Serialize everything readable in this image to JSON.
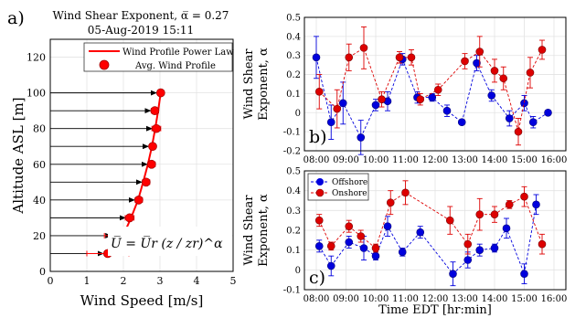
{
  "chart_data": [
    {
      "panel": "a)",
      "type": "scatter",
      "title": "Wind Shear Exponent, α̅ = 0.27",
      "subtitle": "05-Aug-2019 15:11",
      "xlabel": "Wind Speed [m/s]",
      "ylabel": "Altitude ASL [m]",
      "xlim": [
        0,
        5
      ],
      "ylim": [
        0,
        130
      ],
      "xticks": [
        "0",
        "1",
        "2",
        "3",
        "4",
        "5"
      ],
      "yticks": [
        "0",
        "20",
        "40",
        "60",
        "80",
        "100",
        "120"
      ],
      "grid": true,
      "legend_position": "top",
      "legend": [
        "Wind Profile Power Law",
        "Avg. Wind Profile"
      ],
      "formula": "U̅ = U̅r (z / zr)^α",
      "colors": {
        "power_law": "#ff0000",
        "points": "#ff0000",
        "arrows": "#000000"
      },
      "power_law": {
        "altitudes": [
          10,
          20,
          30,
          40,
          50,
          60,
          70,
          80,
          90,
          100
        ],
        "speeds": [
          1.65,
          1.99,
          2.21,
          2.4,
          2.54,
          2.67,
          2.78,
          2.87,
          2.95,
          3.02
        ]
      },
      "points": [
        {
          "alt": 10,
          "speed": 1.57,
          "err_lo": 0.57,
          "err_hi": 0.58
        },
        {
          "alt": 20,
          "speed": 1.78,
          "err_lo": 0.3,
          "err_hi": 0.42
        },
        {
          "alt": 30,
          "speed": 2.17,
          "err_lo": 0.12,
          "err_hi": 0.12
        },
        {
          "alt": 40,
          "speed": 2.42,
          "err_lo": 0.1,
          "err_hi": 0.1
        },
        {
          "alt": 50,
          "speed": 2.62,
          "err_lo": 0.1,
          "err_hi": 0.1
        },
        {
          "alt": 60,
          "speed": 2.77,
          "err_lo": 0.1,
          "err_hi": 0.1
        },
        {
          "alt": 70,
          "speed": 2.8,
          "err_lo": 0.08,
          "err_hi": 0.08
        },
        {
          "alt": 80,
          "speed": 2.9,
          "err_lo": 0.12,
          "err_hi": 0.12
        },
        {
          "alt": 90,
          "speed": 2.86,
          "err_lo": 0.1,
          "err_hi": 0.1
        },
        {
          "alt": 100,
          "speed": 3.02,
          "err_lo": 0.05,
          "err_hi": 0.05
        }
      ]
    },
    {
      "panel": "b)",
      "type": "line",
      "xlabel": "",
      "ylabel": "Wind Shear Exponent, α",
      "ylabel_lines": [
        "Wind Shear",
        "Exponent, α"
      ],
      "xticks": [
        "08:00",
        "09:00",
        "10:00",
        "11:00",
        "12:00",
        "13:00",
        "14:00",
        "15:00",
        "16:00"
      ],
      "yticks": [
        "-0.2",
        "-0.1",
        "0",
        "0.1",
        "0.2",
        "0.3",
        "0.4",
        "0.5"
      ],
      "xlim": [
        7.6,
        16.4
      ],
      "ylim": [
        -0.2,
        0.5
      ],
      "grid": true,
      "series": [
        {
          "color": "#0000dd",
          "x": [
            8.0,
            8.5,
            8.9,
            9.5,
            10.0,
            10.4,
            10.9,
            11.4,
            11.9,
            12.4,
            12.9,
            13.4,
            13.9,
            14.5,
            15.0,
            15.3,
            15.8
          ],
          "y": [
            0.29,
            -0.05,
            0.05,
            -0.13,
            0.04,
            0.06,
            0.28,
            0.08,
            0.08,
            0.01,
            -0.05,
            0.26,
            0.09,
            -0.03,
            0.05,
            -0.05,
            0.0
          ],
          "err": [
            0.11,
            0.09,
            0.11,
            0.09,
            0.03,
            0.05,
            0.03,
            0.03,
            0.02,
            0.03,
            0.01,
            0.04,
            0.03,
            0.04,
            0.04,
            0.03,
            0.0
          ]
        },
        {
          "color": "#dd0000",
          "x": [
            8.1,
            8.7,
            9.1,
            9.6,
            10.2,
            10.8,
            11.2,
            11.5,
            12.1,
            13.0,
            13.5,
            14.0,
            14.3,
            14.8,
            15.2,
            15.6
          ],
          "y": [
            0.11,
            0.02,
            0.29,
            0.34,
            0.07,
            0.29,
            0.29,
            0.07,
            0.12,
            0.27,
            0.32,
            0.22,
            0.18,
            -0.1,
            0.21,
            0.33
          ],
          "err": [
            0.09,
            0.1,
            0.07,
            0.11,
            0.04,
            0.03,
            0.04,
            0.03,
            0.03,
            0.04,
            0.08,
            0.06,
            0.06,
            0.07,
            0.08,
            0.05
          ]
        }
      ]
    },
    {
      "panel": "c)",
      "type": "line",
      "xlabel": "Time EDT [hr:min]",
      "ylabel": "Wind Shear Exponent, α",
      "ylabel_lines": [
        "Wind Shear",
        "Exponent, α"
      ],
      "xticks": [
        "08:00",
        "09:00",
        "10:00",
        "11:00",
        "12:00",
        "13:00",
        "14:00",
        "15:00",
        "16:00"
      ],
      "yticks": [
        "-0.1",
        "0",
        "0.1",
        "0.2",
        "0.3",
        "0.4",
        "0.5"
      ],
      "xlim": [
        7.6,
        16.4
      ],
      "ylim": [
        -0.1,
        0.5
      ],
      "grid": true,
      "legend_position": "top-left",
      "series": [
        {
          "name": "Offshore",
          "color": "#0000dd",
          "x": [
            8.1,
            8.5,
            9.1,
            9.6,
            10.0,
            10.4,
            10.9,
            11.5,
            12.6,
            13.1,
            13.5,
            14.0,
            14.4,
            15.0,
            15.4
          ],
          "y": [
            0.12,
            0.02,
            0.14,
            0.11,
            0.07,
            0.22,
            0.09,
            0.19,
            -0.02,
            0.05,
            0.1,
            0.11,
            0.21,
            -0.02,
            0.33
          ],
          "err": [
            0.03,
            0.05,
            0.03,
            0.06,
            0.02,
            0.05,
            0.02,
            0.03,
            0.06,
            0.04,
            0.03,
            0.02,
            0.05,
            0.05,
            0.05
          ]
        },
        {
          "name": "Onshore",
          "color": "#dd0000",
          "x": [
            8.1,
            8.5,
            9.1,
            9.5,
            10.0,
            10.5,
            11.0,
            12.5,
            13.1,
            13.5,
            14.0,
            14.5,
            15.0,
            15.6
          ],
          "y": [
            0.25,
            0.12,
            0.22,
            0.17,
            0.11,
            0.34,
            0.39,
            0.25,
            0.13,
            0.28,
            0.28,
            0.33,
            0.37,
            0.13
          ],
          "err": [
            0.03,
            0.02,
            0.03,
            0.03,
            0.02,
            0.06,
            0.06,
            0.07,
            0.05,
            0.08,
            0.04,
            0.02,
            0.05,
            0.05
          ]
        }
      ]
    }
  ]
}
